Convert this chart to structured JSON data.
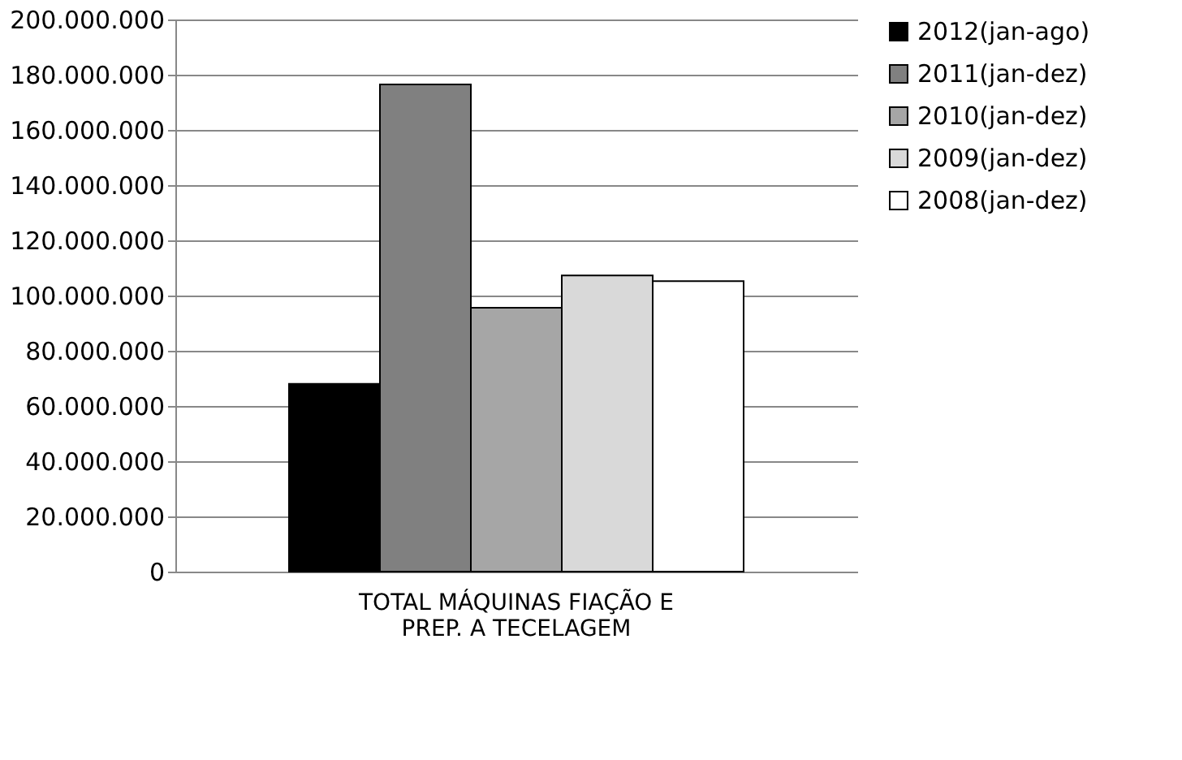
{
  "chart_data": {
    "type": "bar",
    "categories": [
      "TOTAL  MÁQUINAS FIAÇÃO E PREP. A TECELAGEM"
    ],
    "series": [
      {
        "name": "2012(jan-ago)",
        "color": "#000000",
        "values": [
          68000000
        ]
      },
      {
        "name": "2011(jan-dez)",
        "color": "#808080",
        "values": [
          176500000
        ]
      },
      {
        "name": "2010(jan-dez)",
        "color": "#a6a6a6",
        "values": [
          95600000
        ]
      },
      {
        "name": "2009(jan-dez)",
        "color": "#d9d9d9",
        "values": [
          107300000
        ]
      },
      {
        "name": "2008(jan-dez)",
        "color": "#ffffff",
        "values": [
          105200000
        ]
      }
    ],
    "ylim": [
      0,
      200000000
    ],
    "yticks": [
      {
        "value": 0,
        "label": "0"
      },
      {
        "value": 20000000,
        "label": "20.000.000"
      },
      {
        "value": 40000000,
        "label": "40.000.000"
      },
      {
        "value": 60000000,
        "label": "60.000.000"
      },
      {
        "value": 80000000,
        "label": "80.000.000"
      },
      {
        "value": 100000000,
        "label": "100.000.000"
      },
      {
        "value": 120000000,
        "label": "120.000.000"
      },
      {
        "value": 140000000,
        "label": "140.000.000"
      },
      {
        "value": 160000000,
        "label": "160.000.000"
      },
      {
        "value": 180000000,
        "label": "180.000.000"
      },
      {
        "value": 200000000,
        "label": "200.000.000"
      }
    ],
    "grid": "y",
    "legend": "right"
  }
}
